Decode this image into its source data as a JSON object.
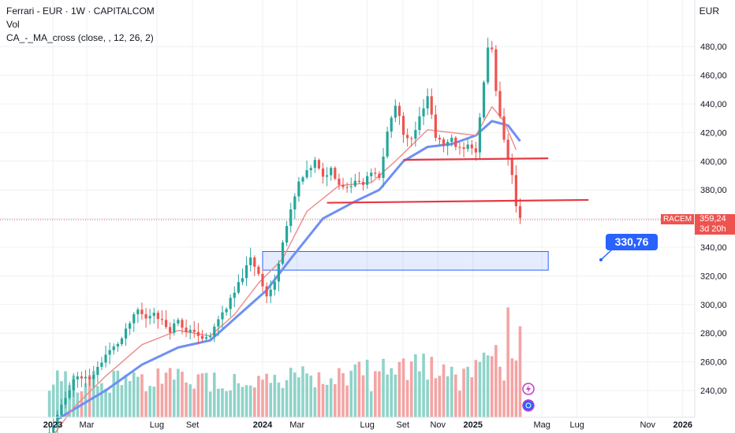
{
  "header": {
    "title": "Ferrari - EUR · 1W · CAPITALCOM",
    "indicator_vol": "Vol",
    "indicator_ma": "CA_-_MA_cross (close, , 12, 26, 2)",
    "currency": "EUR"
  },
  "colors": {
    "up": "#26a69a",
    "down": "#ef5350",
    "vol_up": "#8fd3c9",
    "vol_down": "#f4a4a4",
    "ma_fast": "#ef8a8a",
    "ma_slow": "#6f8ff5",
    "level": "#e53945",
    "zone": "#2962ff",
    "grid": "#eef0f3"
  },
  "chart_data": {
    "type": "candlestick",
    "ylim": [
      220,
      500
    ],
    "y_ticks": [
      "240,00",
      "260,00",
      "280,00",
      "300,00",
      "320,00",
      "340,00",
      "360,00",
      "380,00",
      "400,00",
      "420,00",
      "440,00",
      "460,00",
      "480,00"
    ],
    "x_ticks": [
      "2023",
      "Mar",
      "Lug",
      "Set",
      "2024",
      "Mar",
      "Lug",
      "Set",
      "Nov",
      "2025",
      "Mag",
      "Lug",
      "Nov",
      "2026"
    ],
    "price_path": [
      [
        "2022-12-26",
        210
      ],
      [
        "2023-01-09",
        222
      ],
      [
        "2023-01-23",
        235
      ],
      [
        "2023-02-06",
        248
      ],
      [
        "2023-02-20",
        250
      ],
      [
        "2023-03-06",
        247
      ],
      [
        "2023-03-20",
        256
      ],
      [
        "2023-04-03",
        265
      ],
      [
        "2023-04-17",
        270
      ],
      [
        "2023-05-01",
        276
      ],
      [
        "2023-05-15",
        287
      ],
      [
        "2023-05-29",
        296
      ],
      [
        "2023-06-12",
        290
      ],
      [
        "2023-06-26",
        295
      ],
      [
        "2023-07-10",
        288
      ],
      [
        "2023-07-24",
        282
      ],
      [
        "2023-08-07",
        290
      ],
      [
        "2023-08-21",
        280
      ],
      [
        "2023-09-04",
        282
      ],
      [
        "2023-09-18",
        275
      ],
      [
        "2023-10-02",
        278
      ],
      [
        "2023-10-16",
        290
      ],
      [
        "2023-10-30",
        298
      ],
      [
        "2023-11-13",
        308
      ],
      [
        "2023-11-27",
        320
      ],
      [
        "2023-12-11",
        332
      ],
      [
        "2023-12-25",
        322
      ],
      [
        "2024-01-08",
        306
      ],
      [
        "2024-01-22",
        315
      ],
      [
        "2024-02-05",
        345
      ],
      [
        "2024-02-19",
        365
      ],
      [
        "2024-03-04",
        385
      ],
      [
        "2024-03-18",
        392
      ],
      [
        "2024-04-01",
        400
      ],
      [
        "2024-04-15",
        388
      ],
      [
        "2024-04-29",
        395
      ],
      [
        "2024-05-13",
        384
      ],
      [
        "2024-05-27",
        382
      ],
      [
        "2024-06-10",
        386
      ],
      [
        "2024-06-24",
        384
      ],
      [
        "2024-07-08",
        392
      ],
      [
        "2024-07-22",
        388
      ],
      [
        "2024-08-05",
        420
      ],
      [
        "2024-08-19",
        440
      ],
      [
        "2024-09-02",
        420
      ],
      [
        "2024-09-16",
        415
      ],
      [
        "2024-09-30",
        432
      ],
      [
        "2024-10-14",
        445
      ],
      [
        "2024-10-28",
        418
      ],
      [
        "2024-11-11",
        410
      ],
      [
        "2024-11-25",
        415
      ],
      [
        "2024-12-09",
        408
      ],
      [
        "2024-12-23",
        412
      ],
      [
        "2025-01-06",
        405
      ],
      [
        "2025-01-20",
        455
      ],
      [
        "2025-01-27",
        480
      ],
      [
        "2025-02-03",
        478
      ],
      [
        "2025-02-10",
        448
      ],
      [
        "2025-02-17",
        430
      ],
      [
        "2025-02-24",
        415
      ],
      [
        "2025-03-03",
        400
      ],
      [
        "2025-03-10",
        390
      ],
      [
        "2025-03-17",
        368
      ],
      [
        "2025-03-24",
        359.24
      ]
    ],
    "ma_fast": [
      [
        "2022-12-26",
        205
      ],
      [
        "2023-02-06",
        228
      ],
      [
        "2023-04-03",
        250
      ],
      [
        "2023-06-05",
        272
      ],
      [
        "2023-08-07",
        282
      ],
      [
        "2023-10-02",
        278
      ],
      [
        "2023-11-13",
        293
      ],
      [
        "2023-12-25",
        315
      ],
      [
        "2024-02-05",
        332
      ],
      [
        "2024-03-18",
        365
      ],
      [
        "2024-05-13",
        383
      ],
      [
        "2024-07-08",
        385
      ],
      [
        "2024-08-19",
        400
      ],
      [
        "2024-10-14",
        422
      ],
      [
        "2024-11-25",
        420
      ],
      [
        "2025-01-06",
        418
      ],
      [
        "2025-02-03",
        438
      ],
      [
        "2025-02-24",
        428
      ],
      [
        "2025-03-17",
        408
      ]
    ],
    "ma_slow": [
      [
        "2023-01-09",
        220
      ],
      [
        "2023-04-03",
        240
      ],
      [
        "2023-06-05",
        258
      ],
      [
        "2023-08-07",
        270
      ],
      [
        "2023-10-02",
        275
      ],
      [
        "2023-11-27",
        295
      ],
      [
        "2024-01-08",
        310
      ],
      [
        "2024-02-19",
        332
      ],
      [
        "2024-04-15",
        360
      ],
      [
        "2024-06-10",
        372
      ],
      [
        "2024-07-22",
        380
      ],
      [
        "2024-09-02",
        400
      ],
      [
        "2024-10-14",
        410
      ],
      [
        "2024-11-25",
        412
      ],
      [
        "2025-01-06",
        418
      ],
      [
        "2025-02-03",
        428
      ],
      [
        "2025-03-03",
        425
      ],
      [
        "2025-03-24",
        414
      ]
    ],
    "annotations": {
      "resistance_upper": {
        "start": "2024-09-02",
        "end": "2025-05-12",
        "y_start": 401,
        "y_end": 402
      },
      "support_lower": {
        "start": "2024-04-22",
        "end": "2025-07-21",
        "y_start": 371,
        "y_end": 373
      },
      "target_zone": {
        "start": "2024-01-01",
        "end": "2025-05-12",
        "y_top": 337,
        "y_bottom": 324
      },
      "target_label": "330,76",
      "last_price_label": "359,24",
      "symbol_label": "RACEM",
      "countdown_label": "3d 20h"
    }
  }
}
